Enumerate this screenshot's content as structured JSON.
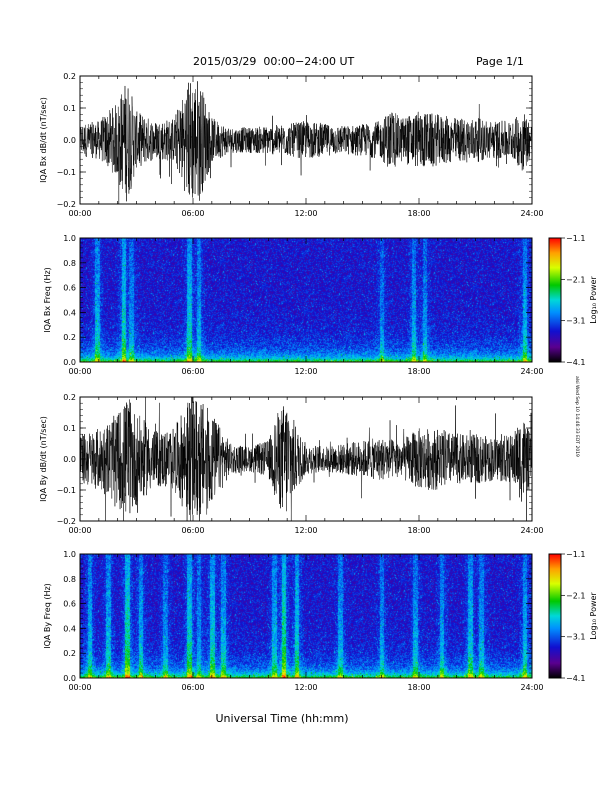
{
  "header": {
    "title": "2015/03/29  00:00−24:00 UT",
    "page": "Page 1/1"
  },
  "side_stamp": "alsi Wed Sep 10 14:46:33 EDT 2019",
  "footer": {
    "xlabel": "Universal Time (hh:mm)"
  },
  "chart_data": [
    {
      "type": "line",
      "ylabel": "IQA Bx dB/dt (nT/sec)",
      "xlim": [
        "00:00",
        "24:00"
      ],
      "ylim": [
        -0.2,
        0.2
      ],
      "x_ticks": [
        "00:00",
        "06:00",
        "12:00",
        "18:00",
        "24:00"
      ],
      "y_ticks": [
        "−0.2",
        "−0.1",
        "0.0",
        "0.1",
        "0.2"
      ],
      "envelope": {
        "hour": [
          0,
          1,
          2,
          2.5,
          3,
          4,
          5,
          5.8,
          6.3,
          7,
          8,
          9,
          10,
          11,
          12,
          13,
          14,
          15,
          16,
          16.5,
          17,
          18,
          19,
          20,
          21,
          22,
          23,
          23.5,
          24
        ],
        "amplitude": [
          0.05,
          0.06,
          0.12,
          0.2,
          0.09,
          0.06,
          0.07,
          0.2,
          0.2,
          0.07,
          0.04,
          0.04,
          0.045,
          0.05,
          0.06,
          0.05,
          0.045,
          0.05,
          0.06,
          0.1,
          0.07,
          0.09,
          0.08,
          0.07,
          0.07,
          0.06,
          0.06,
          0.1,
          0.05
        ]
      }
    },
    {
      "type": "heatmap",
      "ylabel": "IQA Bx Freq (Hz)",
      "xlim": [
        "00:00",
        "24:00"
      ],
      "ylim": [
        0,
        1.0
      ],
      "x_ticks": [
        "00:00",
        "06:00",
        "12:00",
        "18:00",
        "24:00"
      ],
      "y_ticks": [
        "0.0",
        "0.2",
        "0.4",
        "0.6",
        "0.8",
        "1.0"
      ],
      "colorbar": {
        "label": "Log₁₀ Power",
        "range": [
          -4.1,
          -1.1
        ],
        "ticks": [
          "−1.1",
          "−2.1",
          "−3.1",
          "−4.1"
        ]
      },
      "bands": [
        [
          0.9,
          1.0
        ],
        [
          2.3,
          1.3
        ],
        [
          2.7,
          0.8
        ],
        [
          5.8,
          1.2
        ],
        [
          6.3,
          0.9
        ],
        [
          16.0,
          0.7
        ],
        [
          17.7,
          0.9
        ],
        [
          18.3,
          0.8
        ],
        [
          23.6,
          1.0
        ]
      ]
    },
    {
      "type": "line",
      "ylabel": "IQA By dB/dt (nT/sec)",
      "xlim": [
        "00:00",
        "24:00"
      ],
      "ylim": [
        -0.2,
        0.2
      ],
      "x_ticks": [
        "00:00",
        "06:00",
        "12:00",
        "18:00",
        "24:00"
      ],
      "y_ticks": [
        "−0.2",
        "−0.1",
        "0.0",
        "0.1",
        "0.2"
      ],
      "envelope": {
        "hour": [
          0,
          1,
          2,
          2.5,
          3,
          4,
          5,
          5.8,
          6.3,
          7,
          8,
          9,
          10,
          10.5,
          11,
          11.5,
          12,
          13,
          14,
          15,
          16,
          17,
          18,
          19,
          20,
          21,
          22,
          23,
          23.5,
          24
        ],
        "amplitude": [
          0.08,
          0.1,
          0.15,
          0.2,
          0.15,
          0.09,
          0.1,
          0.2,
          0.2,
          0.15,
          0.05,
          0.04,
          0.06,
          0.15,
          0.2,
          0.1,
          0.05,
          0.04,
          0.05,
          0.06,
          0.07,
          0.06,
          0.1,
          0.1,
          0.08,
          0.08,
          0.07,
          0.08,
          0.15,
          0.06
        ]
      }
    },
    {
      "type": "heatmap",
      "ylabel": "IQA By Freq (Hz)",
      "xlim": [
        "00:00",
        "24:00"
      ],
      "ylim": [
        0,
        1.0
      ],
      "x_ticks": [
        "00:00",
        "06:00",
        "12:00",
        "18:00",
        "24:00"
      ],
      "y_ticks": [
        "0.0",
        "0.2",
        "0.4",
        "0.6",
        "0.8",
        "1.0"
      ],
      "colorbar": {
        "label": "Log₁₀ Power",
        "range": [
          -4.1,
          -1.1
        ],
        "ticks": [
          "−1.1",
          "−2.1",
          "−3.1",
          "−4.1"
        ]
      },
      "bands": [
        [
          0.5,
          1.0
        ],
        [
          1.5,
          1.0
        ],
        [
          2.5,
          1.5
        ],
        [
          3.2,
          1.0
        ],
        [
          4.5,
          0.8
        ],
        [
          5.8,
          1.3
        ],
        [
          6.3,
          0.8
        ],
        [
          7.0,
          1.2
        ],
        [
          7.6,
          1.0
        ],
        [
          10.3,
          1.0
        ],
        [
          10.8,
          1.6
        ],
        [
          11.5,
          1.2
        ],
        [
          13.8,
          0.9
        ],
        [
          16.0,
          0.8
        ],
        [
          17.8,
          0.9
        ],
        [
          19.2,
          0.9
        ],
        [
          20.7,
          1.1
        ],
        [
          21.3,
          0.9
        ],
        [
          23.6,
          1.0
        ]
      ]
    }
  ]
}
